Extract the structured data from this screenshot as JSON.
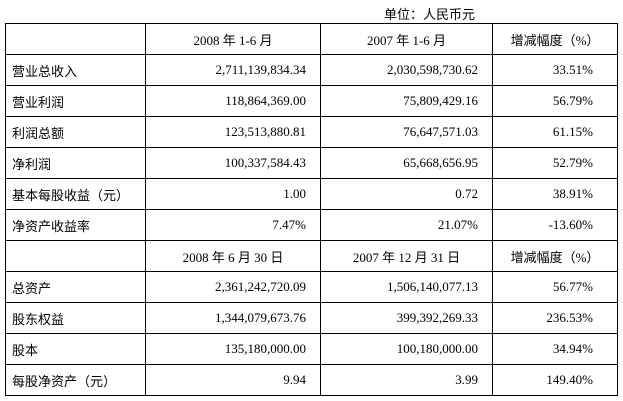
{
  "unit": "单位：人民币元",
  "table": {
    "header1": [
      "2008 年 1-6 月",
      "2007 年 1-6 月",
      "增减幅度（%）"
    ],
    "rows1": [
      [
        "营业总收入",
        "2,711,139,834.34",
        "2,030,598,730.62",
        "33.51%"
      ],
      [
        "营业利润",
        "118,864,369.00",
        "75,809,429.16",
        "56.79%"
      ],
      [
        "利润总额",
        "123,513,880.81",
        "76,647,571.03",
        "61.15%"
      ],
      [
        "净利润",
        "100,337,584.43",
        "65,668,656.95",
        "52.79%"
      ],
      [
        "基本每股收益（元）",
        "1.00",
        "0.72",
        "38.91%"
      ],
      [
        "净资产收益率",
        "7.47%",
        "21.07%",
        "-13.60%"
      ]
    ],
    "header2": [
      "2008 年 6 月 30 日",
      "2007 年 12 月 31 日",
      "增减幅度（%）"
    ],
    "rows2": [
      [
        "总资产",
        "2,361,242,720.09",
        "1,506,140,077.13",
        "56.77%"
      ],
      [
        "股东权益",
        "1,344,079,673.76",
        "399,392,269.33",
        "236.53%"
      ],
      [
        "股本",
        "135,180,000.00",
        "100,180,000.00",
        "34.94%"
      ],
      [
        "每股净资产（元）",
        "9.94",
        "3.99",
        "149.40%"
      ]
    ]
  }
}
